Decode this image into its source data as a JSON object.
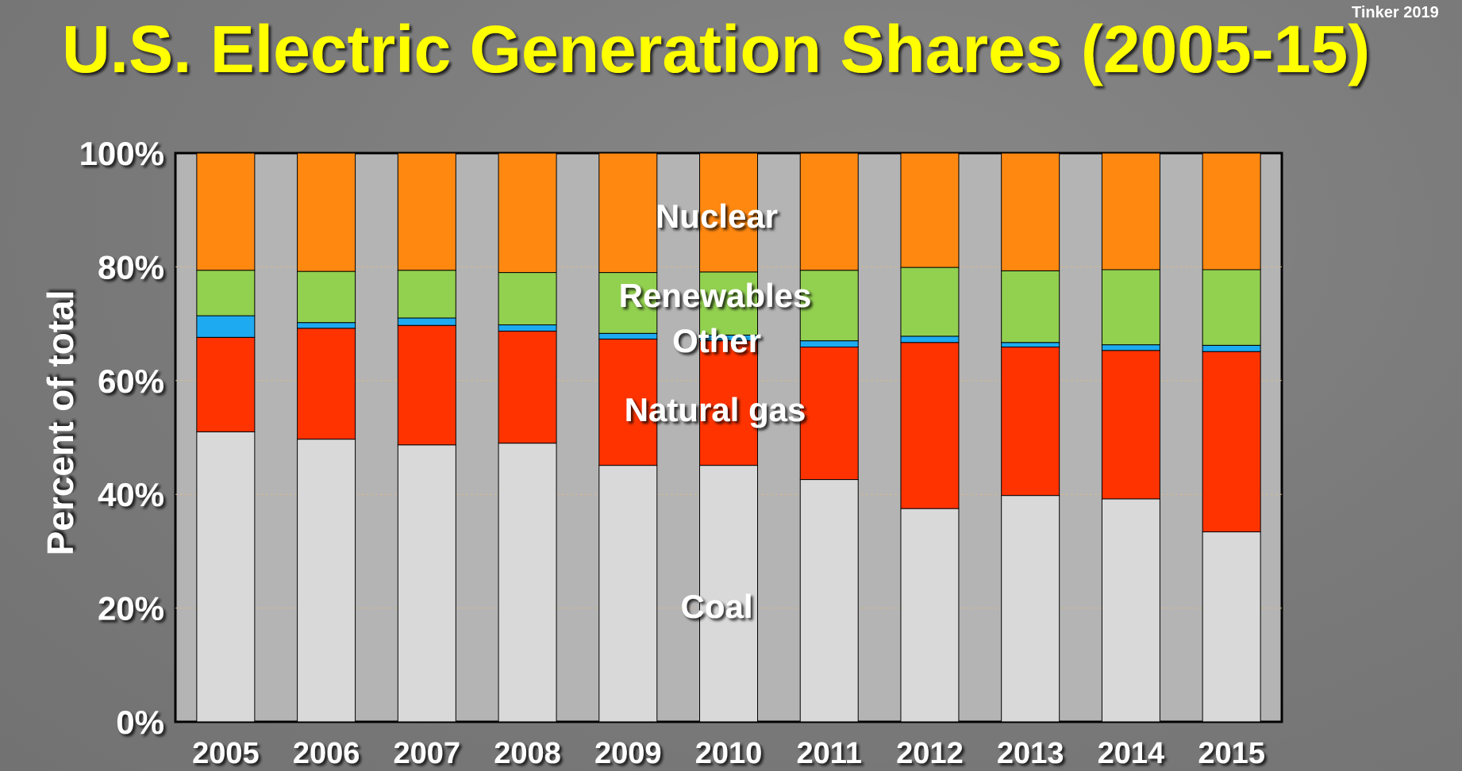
{
  "credit": "Tinker 2019",
  "chart_data": {
    "type": "bar",
    "stacked": true,
    "title": "U.S. Electric Generation Shares (2005-15)",
    "ylabel": "Percent of total",
    "xlabel": "",
    "ylim": [
      0,
      100
    ],
    "yticks": [
      "0%",
      "20%",
      "40%",
      "60%",
      "80%",
      "100%"
    ],
    "categories": [
      "2005",
      "2006",
      "2007",
      "2008",
      "2009",
      "2010",
      "2011",
      "2012",
      "2013",
      "2014",
      "2015"
    ],
    "series": [
      {
        "name": "Coal",
        "color": "#d9d9d9",
        "values": [
          51.0,
          49.7,
          48.7,
          49.0,
          45.1,
          45.1,
          42.6,
          37.5,
          39.8,
          39.2,
          33.4
        ]
      },
      {
        "name": "Natural gas",
        "color": "#ff3300",
        "values": [
          16.6,
          19.5,
          21.0,
          19.7,
          22.2,
          21.9,
          23.3,
          29.2,
          26.1,
          26.1,
          31.7
        ]
      },
      {
        "name": "Other",
        "color": "#1eaaf1",
        "values": [
          3.8,
          1.0,
          1.3,
          1.1,
          1.0,
          1.0,
          1.1,
          1.1,
          0.8,
          1.0,
          1.1
        ]
      },
      {
        "name": "Renewables",
        "color": "#92d050",
        "values": [
          8.0,
          9.0,
          8.4,
          9.2,
          10.7,
          11.1,
          12.4,
          12.1,
          12.6,
          13.2,
          13.3
        ]
      },
      {
        "name": "Nuclear",
        "color": "#ff8811",
        "values": [
          20.6,
          20.8,
          20.6,
          21.0,
          21.0,
          20.9,
          20.6,
          20.1,
          20.7,
          20.5,
          20.5
        ]
      }
    ],
    "grid": true,
    "legend": "inline labels"
  },
  "colors": {
    "title": "#ffff00",
    "plot_background": "#b4b4b4",
    "text": "#ffffff"
  }
}
